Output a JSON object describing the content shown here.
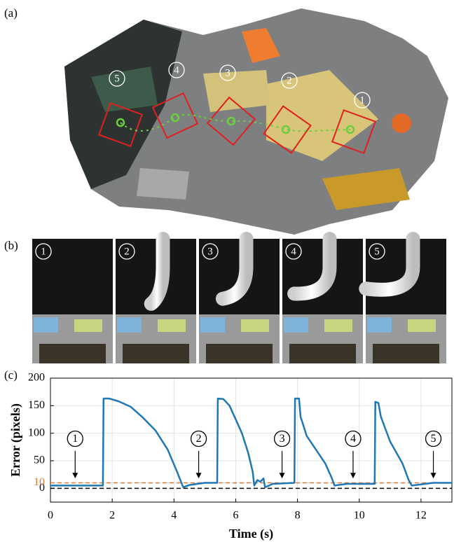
{
  "panel_a": {
    "label": "(a)",
    "markers": [
      "5",
      "4",
      "3",
      "2",
      "1"
    ]
  },
  "panel_b": {
    "label": "(b)",
    "markers": [
      "1",
      "2",
      "3",
      "4",
      "5"
    ]
  },
  "chart_data": {
    "type": "line",
    "label": "(c)",
    "x_label": "Time (s)",
    "y_label": "Error (pixels)",
    "x": [
      0,
      1.7,
      1.72,
      1.9,
      2.2,
      2.6,
      3.0,
      3.4,
      3.8,
      4.1,
      4.3,
      4.5,
      5.0,
      5.4,
      5.42,
      5.6,
      5.8,
      6.0,
      6.2,
      6.4,
      6.55,
      6.6,
      6.7,
      6.8,
      6.9,
      6.95,
      7.2,
      7.9,
      7.92,
      8.05,
      8.1,
      8.3,
      8.6,
      8.9,
      9.1,
      9.2,
      9.6,
      10.5,
      10.52,
      10.62,
      10.7,
      11.0,
      11.4,
      11.6,
      11.7,
      12.0,
      12.4,
      13
    ],
    "values": [
      5,
      5,
      163,
      163,
      158,
      148,
      128,
      105,
      70,
      30,
      2,
      6,
      10,
      10,
      163,
      162,
      150,
      125,
      100,
      65,
      30,
      5,
      15,
      12,
      18,
      2,
      8,
      10,
      163,
      163,
      130,
      95,
      70,
      45,
      20,
      5,
      8,
      8,
      157,
      155,
      130,
      85,
      45,
      15,
      5,
      7,
      10,
      10
    ],
    "color": "#1f77b4",
    "xlim": [
      0,
      13
    ],
    "ylim": [
      -25,
      200
    ],
    "xticks": [
      0,
      2,
      4,
      6,
      8,
      10,
      12
    ],
    "yticks": [
      0,
      10,
      50,
      100,
      150,
      200
    ],
    "grid": true,
    "reference_lines": [
      {
        "value": 10,
        "color": "#e07b39"
      },
      {
        "value": 0,
        "color": "#000000"
      }
    ],
    "annotations": [
      {
        "text": "1",
        "x": 0.8
      },
      {
        "text": "2",
        "x": 4.8
      },
      {
        "text": "3",
        "x": 7.5
      },
      {
        "text": "4",
        "x": 9.8
      },
      {
        "text": "5",
        "x": 12.4
      }
    ]
  }
}
